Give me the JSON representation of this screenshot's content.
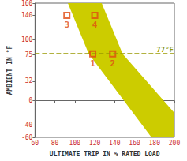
{
  "chart_data": {
    "type": "scatter",
    "xlabel": "ULTIMATE TRIP IN % RATED LOAD",
    "ylabel": "AMBIENT IN °F",
    "xlim": [
      60,
      200
    ],
    "xticks": [
      60,
      80,
      100,
      120,
      140,
      160,
      180,
      200
    ],
    "ylim": [
      -60,
      160
    ],
    "yticks": [
      -60,
      -40,
      0,
      32,
      75,
      100,
      140,
      160
    ],
    "grid": false,
    "band": {
      "color": "#cccc00",
      "x": [
        93,
        127,
        148,
        200,
        200,
        177,
        114
      ],
      "y": [
        160,
        160,
        77,
        -20,
        -60,
        -60,
        77
      ]
    },
    "points": {
      "labels": [
        "1",
        "2",
        "3",
        "4"
      ],
      "x": [
        118,
        138,
        92,
        120
      ],
      "y": [
        77,
        77,
        140,
        140
      ],
      "color": "#e04a10",
      "marker": "square"
    },
    "reference_line": {
      "y": 77,
      "label": "77°F",
      "color": "#999900",
      "line_style": "dashed"
    }
  }
}
